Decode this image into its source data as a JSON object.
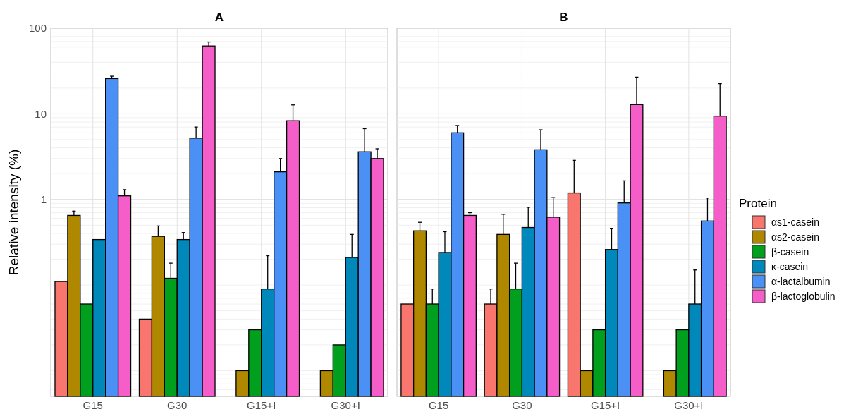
{
  "chart_data": [
    {
      "type": "bar",
      "title": "A",
      "ylabel": "Relative intensity (%)",
      "categories": [
        "G15",
        "G30",
        "G15+I",
        "G30+I"
      ],
      "ylim": [
        0.005,
        100
      ],
      "yticks": [
        1,
        10,
        100
      ],
      "log": "y",
      "grid": true,
      "series": [
        {
          "color": "#f8766d",
          "values": [
            0.11,
            0.04,
            null,
            null
          ],
          "errors": [
            null,
            null,
            null,
            null
          ]
        },
        {
          "color": "#b08800",
          "values": [
            0.65,
            0.37,
            0.01,
            0.01
          ],
          "errors": [
            [
              0.65,
              0.73
            ],
            [
              0.37,
              0.49
            ],
            null,
            null
          ]
        },
        {
          "color": "#00a01e",
          "values": [
            0.06,
            0.12,
            0.03,
            0.02
          ],
          "errors": [
            null,
            [
              0.12,
              0.18
            ],
            null,
            null
          ]
        },
        {
          "color": "#0088bb",
          "values": [
            0.34,
            0.34,
            0.09,
            0.21
          ],
          "errors": [
            null,
            [
              0.34,
              0.41
            ],
            [
              0.09,
              0.22
            ],
            [
              0.21,
              0.39
            ]
          ]
        },
        {
          "color": "#4a90f5",
          "values": [
            25.8,
            5.2,
            2.1,
            3.6
          ],
          "errors": [
            [
              25.8,
              27.5
            ],
            [
              5.2,
              7.0
            ],
            [
              2.1,
              3.0
            ],
            [
              3.6,
              6.7
            ]
          ]
        },
        {
          "color": "#f55dc8",
          "values": [
            1.1,
            62,
            8.3,
            3.0
          ],
          "errors": [
            [
              1.1,
              1.3
            ],
            [
              62,
              69
            ],
            [
              8.3,
              12.7
            ],
            [
              3.0,
              3.9
            ]
          ]
        }
      ]
    },
    {
      "type": "bar",
      "title": "B",
      "categories": [
        "G15",
        "G30",
        "G15+I",
        "G30+I"
      ],
      "ylim": [
        0.005,
        100
      ],
      "yticks": [
        1,
        10,
        100
      ],
      "log": "y",
      "grid": true,
      "tick_labels": "x",
      "legend": "right",
      "legend_title": "Protein",
      "series": [
        {
          "name": "αs1-casein",
          "color": "#f8766d",
          "values": [
            0.06,
            0.06,
            1.19,
            null
          ],
          "errors": [
            null,
            [
              0.06,
              0.09
            ],
            [
              1.19,
              2.86
            ],
            null
          ]
        },
        {
          "name": "αs2-casein",
          "color": "#b08800",
          "values": [
            0.43,
            0.39,
            0.01,
            0.01
          ],
          "errors": [
            [
              0.43,
              0.54
            ],
            [
              0.39,
              0.67
            ],
            null,
            null
          ]
        },
        {
          "name": "β-casein",
          "color": "#00a01e",
          "values": [
            0.06,
            0.09,
            0.03,
            0.03
          ],
          "errors": [
            [
              0.06,
              0.09
            ],
            [
              0.09,
              0.18
            ],
            null,
            null
          ]
        },
        {
          "name": "κ-casein",
          "color": "#0088bb",
          "values": [
            0.24,
            0.47,
            0.26,
            0.06
          ],
          "errors": [
            [
              0.24,
              0.42
            ],
            [
              0.47,
              0.81
            ],
            [
              0.26,
              0.46
            ],
            [
              0.06,
              0.15
            ]
          ]
        },
        {
          "name": "α-lactalbumin",
          "color": "#4a90f5",
          "values": [
            6.0,
            3.8,
            0.91,
            0.56
          ],
          "errors": [
            [
              6.0,
              7.3
            ],
            [
              3.8,
              6.5
            ],
            [
              0.91,
              1.65
            ],
            [
              0.56,
              1.04
            ]
          ]
        },
        {
          "name": "β-lactoglobulin",
          "color": "#f55dc8",
          "values": [
            0.65,
            0.62,
            12.8,
            9.4
          ],
          "errors": [
            [
              0.65,
              0.7
            ],
            [
              0.62,
              1.05
            ],
            [
              12.8,
              26.8
            ],
            [
              9.4,
              22.5
            ]
          ]
        }
      ]
    }
  ]
}
